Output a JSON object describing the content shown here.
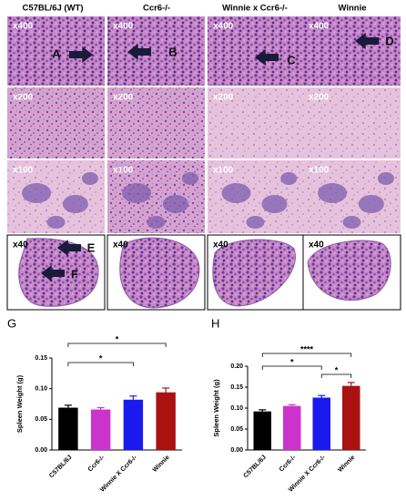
{
  "histology": {
    "column_headers": [
      "C57BL/6J (WT)",
      "Ccr6-/-",
      "Winnie x Ccr6-/-",
      "Winnie"
    ],
    "rows": [
      [
        {
          "label": "x400",
          "arrows": [
            "A"
          ]
        },
        {
          "label": "x400",
          "arrows": [
            "B"
          ]
        },
        {
          "label": "x400",
          "arrows": [
            "C"
          ]
        },
        {
          "label": "x400",
          "arrows": [
            "D"
          ]
        }
      ],
      [
        {
          "label": "x200"
        },
        {
          "label": "x200"
        },
        {
          "label": "x200"
        },
        {
          "label": "x200"
        }
      ],
      [
        {
          "label": "x100"
        },
        {
          "label": "x100"
        },
        {
          "label": "x100"
        },
        {
          "label": "x100"
        }
      ],
      [
        {
          "label": "x40",
          "arrows": [
            "E",
            "F"
          ]
        },
        {
          "label": "x40"
        },
        {
          "label": "x40"
        },
        {
          "label": "x40"
        }
      ]
    ]
  },
  "chart_data": [
    {
      "type": "bar",
      "panel": "G",
      "y_label": "Spleen Weight (g)",
      "categories": [
        "C57BL/6J",
        "Ccr6-/-",
        "Winnie X Ccr6-/-",
        "Winnie"
      ],
      "values": [
        0.069,
        0.066,
        0.082,
        0.094
      ],
      "errors": [
        0.004,
        0.003,
        0.006,
        0.007
      ],
      "colors": [
        "#000000",
        "#cc33cc",
        "#1a1aee",
        "#aa1111"
      ],
      "ylim": [
        0,
        0.15
      ],
      "yticks": [
        {
          "value": 0,
          "label": "0.00"
        },
        {
          "value": 0.05,
          "label": "0.05"
        },
        {
          "value": 0.1,
          "label": "0.10"
        },
        {
          "value": 0.15,
          "label": "0.15"
        }
      ],
      "significance": [
        {
          "text": "*",
          "between": [
            "C57BL/6J",
            "Winnie"
          ]
        },
        {
          "text": "*",
          "between": [
            "C57BL/6J",
            "Winnie X Ccr6-/-"
          ]
        }
      ]
    },
    {
      "type": "bar",
      "panel": "H",
      "y_label": "Spleen Weight (g)",
      "categories": [
        "C57BL/6J",
        "Ccr6-/-",
        "Winnie X Ccr6-/-",
        "Winnie"
      ],
      "values": [
        0.092,
        0.105,
        0.125,
        0.153
      ],
      "errors": [
        0.004,
        0.003,
        0.005,
        0.008
      ],
      "colors": [
        "#000000",
        "#cc33cc",
        "#1a1aee",
        "#aa1111"
      ],
      "ylim": [
        0,
        0.2
      ],
      "yticks": [
        {
          "value": 0,
          "label": "0.00"
        },
        {
          "value": 0.05,
          "label": "0.05"
        },
        {
          "value": 0.1,
          "label": "0.10"
        },
        {
          "value": 0.15,
          "label": "0.15"
        },
        {
          "value": 0.2,
          "label": "0.20"
        }
      ],
      "significance": [
        {
          "text": "****",
          "between": [
            "C57BL/6J",
            "Winnie"
          ]
        },
        {
          "text": "*",
          "between": [
            "C57BL/6J",
            "Winnie X Ccr6-/-"
          ]
        },
        {
          "text": "*",
          "between": [
            "Winnie X Ccr6-/-",
            "Winnie"
          ]
        }
      ]
    }
  ]
}
